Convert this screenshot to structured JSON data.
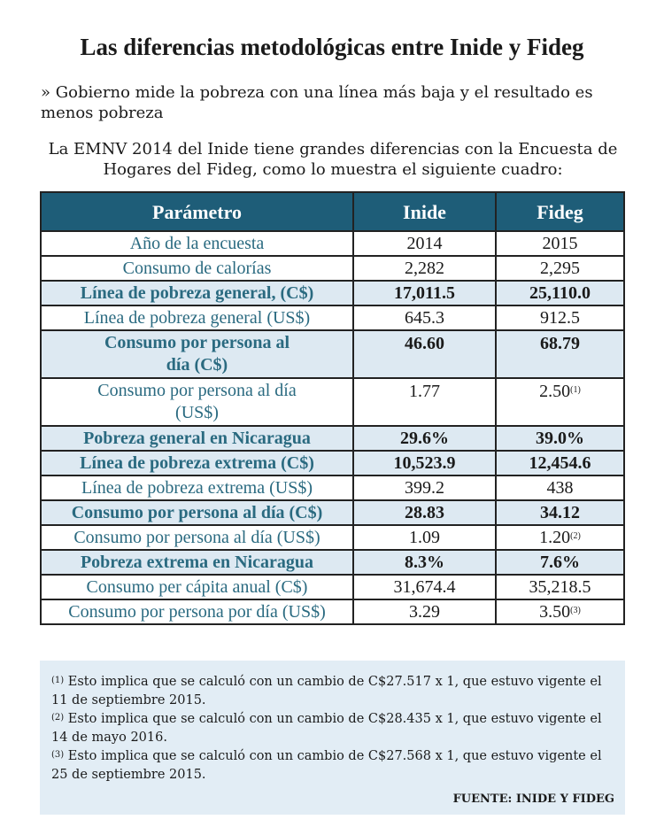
{
  "title": "Las diferencias metodológicas entre Inide y Fideg",
  "subtitle": "» Gobierno mide la pobreza con una línea más baja y el resultado es menos pobreza",
  "intro": "La EMNV 2014 del Inide tiene grandes diferencias con la Encuesta de Hogares del Fideg, como lo muestra el siguiente cuadro:",
  "colors": {
    "header": "#1e5d78",
    "param_text": "#2a6a80",
    "shaded_row": "#dde9f2",
    "notes_bg": "#e2edf5"
  },
  "table": {
    "headers": [
      "Parámetro",
      "Inide",
      "Fideg"
    ],
    "rows": [
      {
        "param": "Año de la encuesta",
        "inide": "2014",
        "fideg": "2015",
        "bold": false
      },
      {
        "param": "Consumo de calorías",
        "inide": "2,282",
        "fideg": "2,295",
        "bold": false
      },
      {
        "param": "Línea de pobreza general, (C$)",
        "inide": "17,011.5",
        "fideg": "25,110.0",
        "bold": true
      },
      {
        "param": "Línea de pobreza general (US$)",
        "inide": "645.3",
        "fideg": "912.5",
        "bold": false
      },
      {
        "param": "Consumo por persona al día (C$)",
        "inide": "46.60",
        "fideg": "68.79",
        "bold": true
      },
      {
        "param": "Consumo por persona al día (US$)",
        "inide": "1.77",
        "fideg": "2.50",
        "note": "(1)",
        "bold": false
      },
      {
        "param": "Pobreza general en Nicaragua",
        "inide": "29.6%",
        "fideg": "39.0%",
        "bold": true
      },
      {
        "param": "Línea de pobreza extrema (C$)",
        "inide": "10,523.9",
        "fideg": "12,454.6",
        "bold": true
      },
      {
        "param": "Línea de pobreza extrema (US$)",
        "inide": "399.2",
        "fideg": "438",
        "bold": false
      },
      {
        "param": "Consumo por persona al día (C$)",
        "inide": "28.83",
        "fideg": "34.12",
        "bold": true
      },
      {
        "param": "Consumo por persona al día (US$)",
        "inide": "1.09",
        "fideg": "1.20",
        "note": "(2)",
        "bold": false
      },
      {
        "param": "Pobreza extrema en Nicaragua",
        "inide": "8.3%",
        "fideg": "7.6%",
        "bold": true
      },
      {
        "param": "Consumo per cápita anual (C$)",
        "inide": "31,674.4",
        "fideg": "35,218.5",
        "bold": false
      },
      {
        "param": "Consumo por persona por día (US$)",
        "inide": "3.29",
        "fideg": "3.50",
        "note": "(3)",
        "bold": false
      }
    ]
  },
  "notes": [
    {
      "mark": "(1)",
      "text": " Esto implica que se calculó con un cambio de C$27.517 x 1, que estuvo vigente el 11 de septiembre 2015."
    },
    {
      "mark": "(2)",
      "text": " Esto implica que se calculó con un cambio de C$28.435 x 1, que estuvo vigente el 14 de mayo 2016."
    },
    {
      "mark": "(3)",
      "text": " Esto implica que se calculó con un cambio de C$27.568 x 1, que estuvo vigente el 25 de septiembre 2015."
    }
  ],
  "source": "FUENTE: INIDE Y FIDEG"
}
